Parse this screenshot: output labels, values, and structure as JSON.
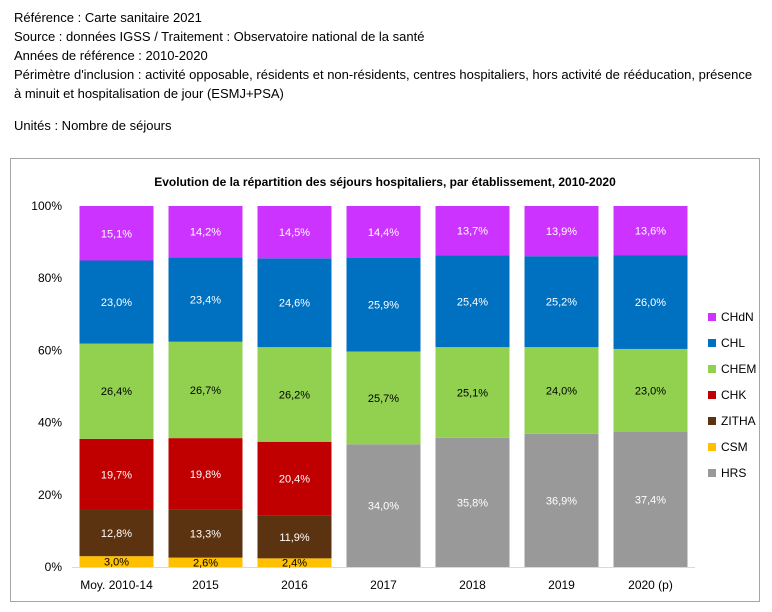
{
  "meta": {
    "reference": "Référence : Carte sanitaire 2021",
    "source": "Source : données IGSS / Traitement : Observatoire national de la santé",
    "years": "Années de référence : 2010-2020",
    "scope": "Périmètre d'inclusion : activité opposable, résidents et non-résidents, centres hospitaliers, hors activité de rééducation, présence à minuit et hospitalisation de jour (ESMJ+PSA)",
    "units": "Unités : Nombre de séjours"
  },
  "chart_data": {
    "type": "bar",
    "stacked": true,
    "percent": true,
    "title": "Evolution de la répartition des séjours hospitaliers, par établissement, 2010-2020",
    "xlabel": "",
    "ylabel": "",
    "ylim": [
      0,
      100
    ],
    "yticks": [
      "0%",
      "20%",
      "40%",
      "60%",
      "80%",
      "100%"
    ],
    "categories": [
      "Moy. 2010-14",
      "2015",
      "2016",
      "2017",
      "2018",
      "2019",
      "2020 (p)"
    ],
    "legend_position": "right",
    "series": [
      {
        "name": "HRS",
        "color": "#999999",
        "label_color": "#ffffff",
        "values": [
          null,
          null,
          null,
          34.0,
          35.8,
          36.9,
          37.4
        ],
        "labels": [
          "",
          "",
          "",
          "34,0%",
          "35,8%",
          "36,9%",
          "37,4%"
        ]
      },
      {
        "name": "CSM",
        "color": "#ffc000",
        "label_color": "#000000",
        "values": [
          3.0,
          2.6,
          2.4,
          null,
          null,
          null,
          null
        ],
        "labels": [
          "3,0%",
          "2,6%",
          "2,4%",
          "",
          "",
          "",
          ""
        ]
      },
      {
        "name": "ZITHA",
        "color": "#5c3310",
        "label_color": "#ffffff",
        "values": [
          12.8,
          13.3,
          11.9,
          null,
          null,
          null,
          null
        ],
        "labels": [
          "12,8%",
          "13,3%",
          "11,9%",
          "",
          "",
          "",
          ""
        ]
      },
      {
        "name": "CHK",
        "color": "#c00000",
        "label_color": "#ffffff",
        "values": [
          19.7,
          19.8,
          20.4,
          null,
          null,
          null,
          null
        ],
        "labels": [
          "19,7%",
          "19,8%",
          "20,4%",
          "",
          "",
          "",
          ""
        ]
      },
      {
        "name": "CHEM",
        "color": "#92d050",
        "label_color": "#000000",
        "values": [
          26.4,
          26.7,
          26.2,
          25.7,
          25.1,
          24.0,
          23.0
        ],
        "labels": [
          "26,4%",
          "26,7%",
          "26,2%",
          "25,7%",
          "25,1%",
          "24,0%",
          "23,0%"
        ]
      },
      {
        "name": "CHL",
        "color": "#0070c0",
        "label_color": "#ffffff",
        "values": [
          23.0,
          23.4,
          24.6,
          25.9,
          25.4,
          25.2,
          26.0
        ],
        "labels": [
          "23,0%",
          "23,4%",
          "24,6%",
          "25,9%",
          "25,4%",
          "25,2%",
          "26,0%"
        ]
      },
      {
        "name": "CHdN",
        "color": "#cc33ff",
        "label_color": "#ffffff",
        "values": [
          15.1,
          14.2,
          14.5,
          14.4,
          13.7,
          13.9,
          13.6
        ],
        "labels": [
          "15,1%",
          "14,2%",
          "14,5%",
          "14,4%",
          "13,7%",
          "13,9%",
          "13,6%"
        ]
      }
    ],
    "legend_order": [
      "CHdN",
      "CHL",
      "CHEM",
      "CHK",
      "ZITHA",
      "CSM",
      "HRS"
    ]
  }
}
